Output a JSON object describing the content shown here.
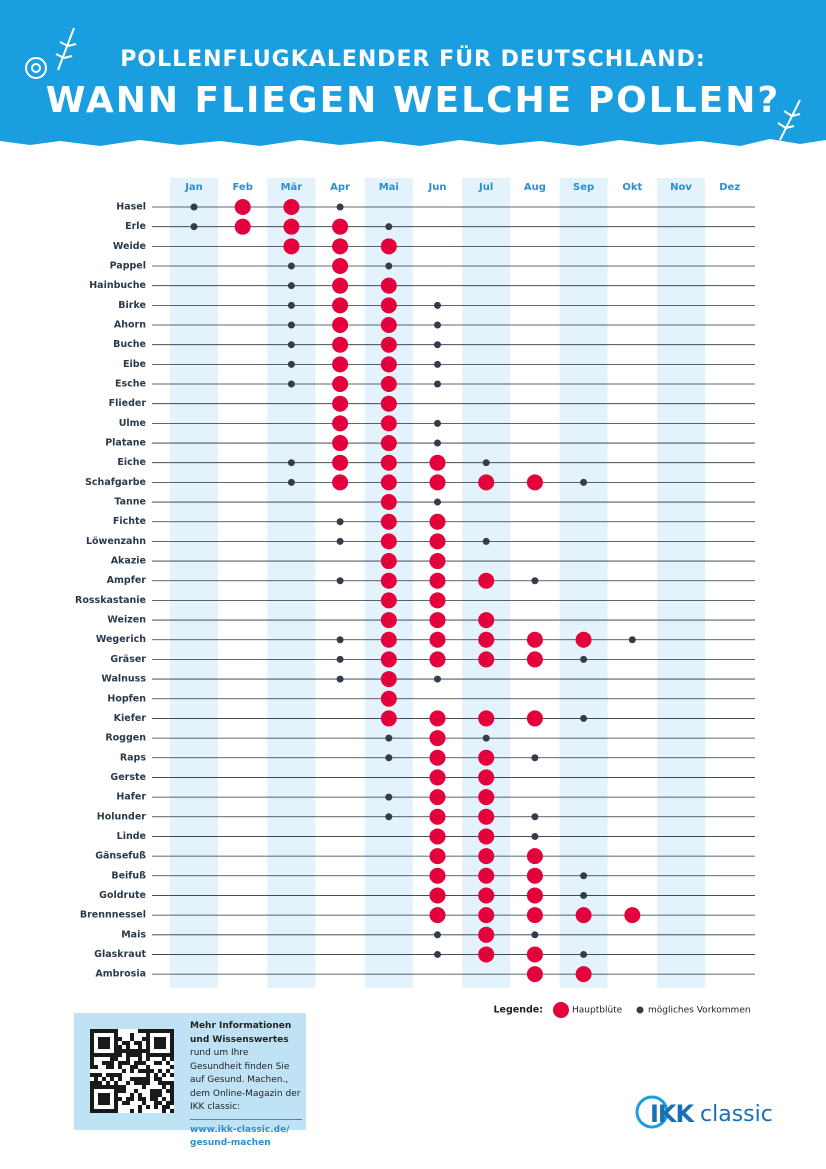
{
  "header": {
    "line1": "POLLENFLUGKALENDER FÜR DEUTSCHLAND:",
    "line2": "WANN FLIEGEN WELCHE POLLEN?"
  },
  "calendar": {
    "months": [
      "Jan",
      "Feb",
      "Mär",
      "Apr",
      "Mai",
      "Jun",
      "Jul",
      "Aug",
      "Sep",
      "Okt",
      "Nov",
      "Dez"
    ],
    "plants": [
      {
        "name": "Hasel",
        "main": [
          "Feb",
          "Mär"
        ],
        "possible": [
          "Jan",
          "Apr"
        ]
      },
      {
        "name": "Erle",
        "main": [
          "Feb",
          "Mär",
          "Apr"
        ],
        "possible": [
          "Jan",
          "Mai"
        ]
      },
      {
        "name": "Weide",
        "main": [
          "Mär",
          "Apr",
          "Mai"
        ],
        "possible": []
      },
      {
        "name": "Pappel",
        "main": [
          "Apr"
        ],
        "possible": [
          "Mär",
          "Mai"
        ]
      },
      {
        "name": "Hainbuche",
        "main": [
          "Apr",
          "Mai"
        ],
        "possible": [
          "Mär"
        ]
      },
      {
        "name": "Birke",
        "main": [
          "Apr",
          "Mai"
        ],
        "possible": [
          "Mär",
          "Jun"
        ]
      },
      {
        "name": "Ahorn",
        "main": [
          "Apr",
          "Mai"
        ],
        "possible": [
          "Mär",
          "Jun"
        ]
      },
      {
        "name": "Buche",
        "main": [
          "Apr",
          "Mai"
        ],
        "possible": [
          "Mär",
          "Jun"
        ]
      },
      {
        "name": "Eibe",
        "main": [
          "Apr",
          "Mai"
        ],
        "possible": [
          "Mär",
          "Jun"
        ]
      },
      {
        "name": "Esche",
        "main": [
          "Apr",
          "Mai"
        ],
        "possible": [
          "Mär",
          "Jun"
        ]
      },
      {
        "name": "Flieder",
        "main": [
          "Apr",
          "Mai"
        ],
        "possible": []
      },
      {
        "name": "Ulme",
        "main": [
          "Apr",
          "Mai"
        ],
        "possible": [
          "Jun"
        ]
      },
      {
        "name": "Platane",
        "main": [
          "Apr",
          "Mai"
        ],
        "possible": [
          "Jun"
        ]
      },
      {
        "name": "Eiche",
        "main": [
          "Apr",
          "Mai",
          "Jun"
        ],
        "possible": [
          "Mär",
          "Jul"
        ]
      },
      {
        "name": "Schafgarbe",
        "main": [
          "Apr",
          "Mai",
          "Jun",
          "Jul",
          "Aug"
        ],
        "possible": [
          "Mär",
          "Sep"
        ]
      },
      {
        "name": "Tanne",
        "main": [
          "Mai"
        ],
        "possible": [
          "Jun"
        ]
      },
      {
        "name": "Fichte",
        "main": [
          "Mai",
          "Jun"
        ],
        "possible": [
          "Apr"
        ]
      },
      {
        "name": "Löwenzahn",
        "main": [
          "Mai",
          "Jun"
        ],
        "possible": [
          "Apr",
          "Jul"
        ]
      },
      {
        "name": "Akazie",
        "main": [
          "Mai",
          "Jun"
        ],
        "possible": []
      },
      {
        "name": "Ampfer",
        "main": [
          "Mai",
          "Jun",
          "Jul"
        ],
        "possible": [
          "Apr",
          "Aug"
        ]
      },
      {
        "name": "Rosskastanie",
        "main": [
          "Mai",
          "Jun"
        ],
        "possible": []
      },
      {
        "name": "Weizen",
        "main": [
          "Mai",
          "Jun",
          "Jul"
        ],
        "possible": []
      },
      {
        "name": "Wegerich",
        "main": [
          "Mai",
          "Jun",
          "Jul",
          "Aug",
          "Sep"
        ],
        "possible": [
          "Apr",
          "Okt"
        ]
      },
      {
        "name": "Gräser",
        "main": [
          "Mai",
          "Jun",
          "Jul",
          "Aug"
        ],
        "possible": [
          "Apr",
          "Sep"
        ]
      },
      {
        "name": "Walnuss",
        "main": [
          "Mai"
        ],
        "possible": [
          "Apr",
          "Jun"
        ]
      },
      {
        "name": "Hopfen",
        "main": [
          "Mai"
        ],
        "possible": []
      },
      {
        "name": "Kiefer",
        "main": [
          "Mai",
          "Jun",
          "Jul",
          "Aug"
        ],
        "possible": [
          "Sep"
        ]
      },
      {
        "name": "Roggen",
        "main": [
          "Jun"
        ],
        "possible": [
          "Mai",
          "Jul"
        ]
      },
      {
        "name": "Raps",
        "main": [
          "Jun",
          "Jul"
        ],
        "possible": [
          "Mai",
          "Aug"
        ]
      },
      {
        "name": "Gerste",
        "main": [
          "Jun",
          "Jul"
        ],
        "possible": []
      },
      {
        "name": "Hafer",
        "main": [
          "Jun",
          "Jul"
        ],
        "possible": [
          "Mai"
        ]
      },
      {
        "name": "Holunder",
        "main": [
          "Jun",
          "Jul"
        ],
        "possible": [
          "Mai",
          "Aug"
        ]
      },
      {
        "name": "Linde",
        "main": [
          "Jun",
          "Jul"
        ],
        "possible": [
          "Aug"
        ]
      },
      {
        "name": "Gänsefuß",
        "main": [
          "Jun",
          "Jul",
          "Aug"
        ],
        "possible": []
      },
      {
        "name": "Beifuß",
        "main": [
          "Jun",
          "Jul",
          "Aug"
        ],
        "possible": [
          "Sep"
        ]
      },
      {
        "name": "Goldrute",
        "main": [
          "Jun",
          "Jul",
          "Aug"
        ],
        "possible": [
          "Sep"
        ]
      },
      {
        "name": "Brennnessel",
        "main": [
          "Jun",
          "Jul",
          "Aug",
          "Sep",
          "Okt"
        ],
        "possible": []
      },
      {
        "name": "Mais",
        "main": [
          "Jul"
        ],
        "possible": [
          "Jun",
          "Aug"
        ]
      },
      {
        "name": "Glaskraut",
        "main": [
          "Jul",
          "Aug"
        ],
        "possible": [
          "Jun",
          "Sep"
        ]
      },
      {
        "name": "Ambrosia",
        "main": [
          "Aug",
          "Sep"
        ],
        "possible": []
      }
    ]
  },
  "legend": {
    "title": "Legende:",
    "main": "Hauptblüte",
    "possible": "mögliches Vorkommen"
  },
  "info": {
    "bold": "Mehr Informationen und Wissenswertes",
    "text": "rund um Ihre Gesundheit finden Sie auf Gesund. Machen., dem Online-Magazin der IKK classic:",
    "link": [
      "www.ikk-classic.de/",
      "gesund-machen"
    ]
  },
  "logo": {
    "brand": "IKK",
    "suffix": "classic"
  }
}
